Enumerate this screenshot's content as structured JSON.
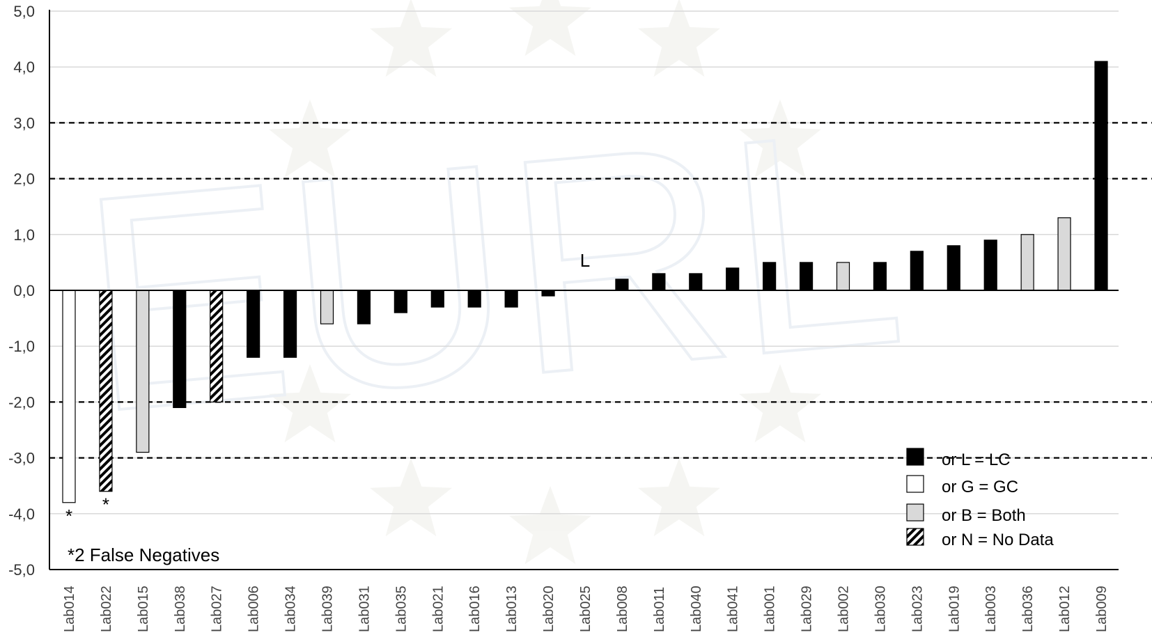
{
  "chart_data": {
    "type": "bar",
    "title": "",
    "xlabel": "",
    "ylabel": "",
    "ylim": [
      -5,
      5
    ],
    "yticks": [
      "5,0",
      "4,0",
      "3,0",
      "2,0",
      "1,0",
      "0,0",
      "-1,0",
      "-2,0",
      "-3,0",
      "-4,0",
      "-5,0"
    ],
    "grid": true,
    "categories": [
      "Lab014",
      "Lab022",
      "Lab015",
      "Lab038",
      "Lab027",
      "Lab006",
      "Lab034",
      "Lab039",
      "Lab031",
      "Lab035",
      "Lab021",
      "Lab016",
      "Lab013",
      "Lab020",
      "Lab025",
      "Lab008",
      "Lab011",
      "Lab040",
      "Lab041",
      "Lab001",
      "Lab029",
      "Lab002",
      "Lab030",
      "Lab023",
      "Lab019",
      "Lab003",
      "Lab036",
      "Lab012",
      "Lab009"
    ],
    "values": [
      -3.8,
      -3.6,
      -2.9,
      -2.1,
      -2.0,
      -1.2,
      -1.2,
      -0.6,
      -0.6,
      -0.4,
      -0.3,
      -0.3,
      -0.3,
      -0.1,
      null,
      0.2,
      0.3,
      0.3,
      0.4,
      0.5,
      0.5,
      0.5,
      0.5,
      0.7,
      0.8,
      0.9,
      1.0,
      1.3,
      4.1
    ],
    "types": [
      "G",
      "N",
      "B",
      "L",
      "N",
      "L",
      "L",
      "B",
      "L",
      "L",
      "L",
      "L",
      "L",
      "L",
      "L",
      "L",
      "L",
      "L",
      "L",
      "L",
      "L",
      "B",
      "L",
      "L",
      "L",
      "L",
      "B",
      "B",
      "L"
    ],
    "reference_lines": [
      3,
      2,
      -2,
      -3
    ],
    "bar_markers": [
      {
        "category": "Lab014",
        "text": "*"
      },
      {
        "category": "Lab022",
        "text": "*"
      },
      {
        "category": "Lab025",
        "text": "L"
      }
    ],
    "legend": {
      "position": "bottom-right",
      "entries": [
        {
          "label": "or L = LC",
          "type": "L"
        },
        {
          "label": "or G = GC",
          "type": "G"
        },
        {
          "label": "or B = Both",
          "type": "B"
        },
        {
          "label": "or N = No Data",
          "type": "N"
        }
      ]
    },
    "annotation": "*2 False Negatives",
    "watermark": "EURL",
    "colors": {
      "L": "#000000",
      "G": "#ffffff",
      "B": "#d9d9d9",
      "grid": "#d9d9d9",
      "axis": "#000000"
    }
  }
}
